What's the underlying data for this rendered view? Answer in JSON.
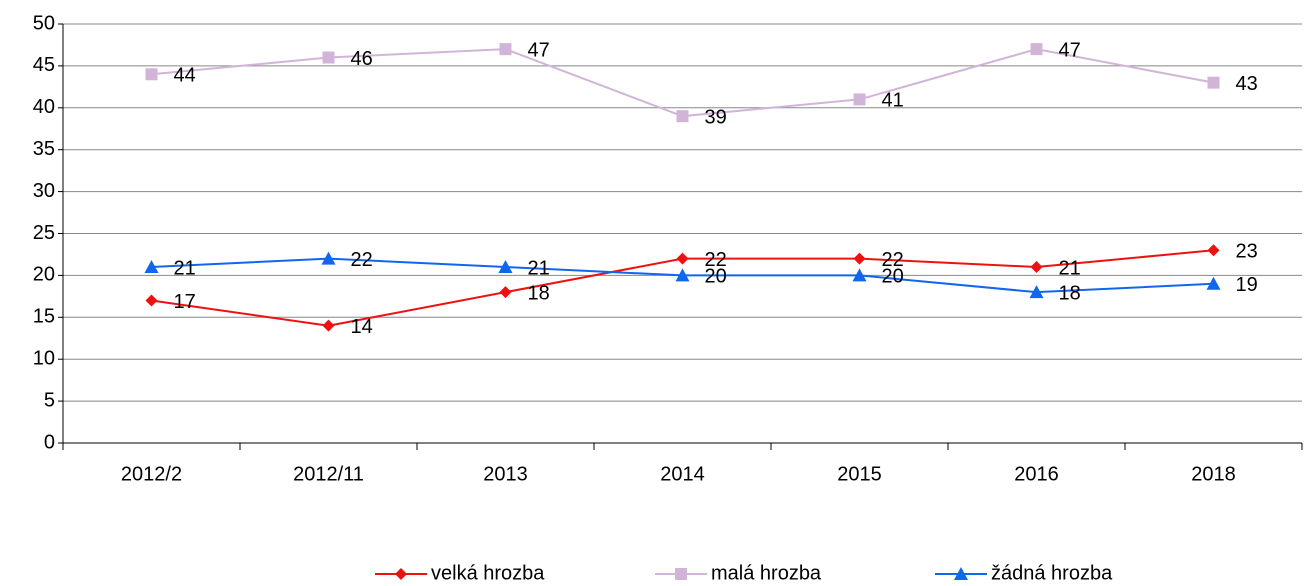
{
  "chart_data": {
    "type": "line",
    "categories": [
      "2012/2",
      "2012/11",
      "2013",
      "2014",
      "2015",
      "2016",
      "2018"
    ],
    "series": [
      {
        "name": "velká hrozba",
        "color": "#ee1111",
        "marker": "diamond",
        "values": [
          17,
          14,
          18,
          22,
          22,
          21,
          23
        ]
      },
      {
        "name": "malá hrozba",
        "color": "#d2b4d9",
        "marker": "square",
        "values": [
          44,
          46,
          47,
          39,
          41,
          47,
          43
        ]
      },
      {
        "name": "žádná hrozba",
        "color": "#1166ee",
        "marker": "triangle",
        "values": [
          21,
          22,
          21,
          20,
          20,
          18,
          19
        ]
      }
    ],
    "ylim": [
      0,
      50
    ],
    "yticks": [
      0,
      5,
      10,
      15,
      20,
      25,
      30,
      35,
      40,
      45,
      50
    ],
    "grid": true,
    "legend": "bottom"
  }
}
